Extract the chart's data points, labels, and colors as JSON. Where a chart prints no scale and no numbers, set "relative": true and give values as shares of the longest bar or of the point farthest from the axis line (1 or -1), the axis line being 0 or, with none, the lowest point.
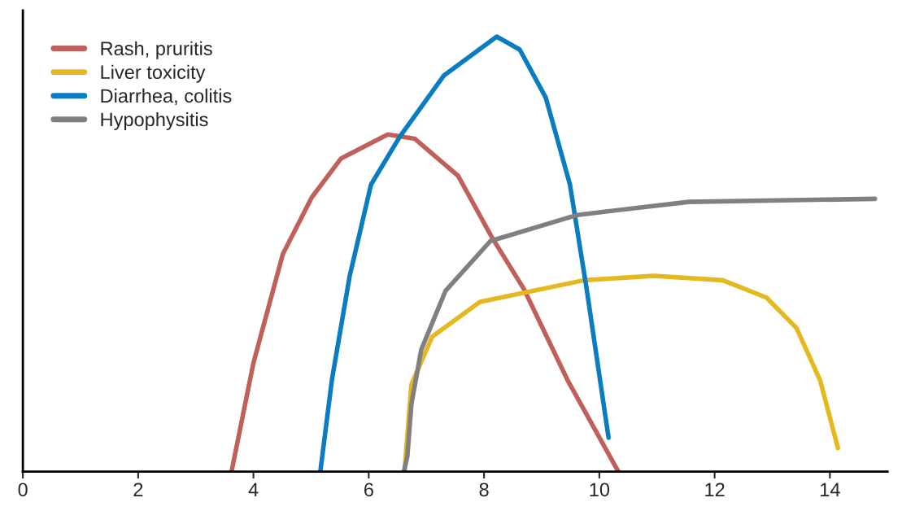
{
  "chart_data": {
    "type": "line",
    "relative": true,
    "xlim": [
      0,
      15
    ],
    "xticks": [
      0,
      2,
      4,
      6,
      8,
      10,
      12,
      14
    ],
    "tick_labels": "x",
    "grid": false,
    "legend": "top left",
    "marker": "none",
    "line_style": "solid",
    "series": [
      {
        "name": "Rash, pruritis",
        "color": "#c0605a",
        "x": [
          3.62,
          4.0,
          4.51,
          5.01,
          5.52,
          6.33,
          6.8,
          7.55,
          8.13,
          8.69,
          9.45,
          10.33
        ],
        "values": [
          0,
          0.25,
          0.5,
          0.63,
          0.72,
          0.775,
          0.765,
          0.68,
          0.54,
          0.42,
          0.21,
          0
        ]
      },
      {
        "name": "Liver toxicity",
        "color": "#e6b820",
        "x": [
          6.62,
          6.74,
          7.1,
          7.93,
          9.74,
          10.94,
          12.14,
          12.9,
          13.42,
          13.83,
          14.14
        ],
        "values": [
          0,
          0.2,
          0.31,
          0.39,
          0.44,
          0.45,
          0.44,
          0.4,
          0.33,
          0.21,
          0.054
        ]
      },
      {
        "name": "Diarrhea, colitis",
        "color": "#0a7cc2",
        "x": [
          5.16,
          5.36,
          5.67,
          6.04,
          6.54,
          7.3,
          8.22,
          8.62,
          9.07,
          9.49,
          9.78,
          10.16
        ],
        "values": [
          0,
          0.21,
          0.45,
          0.66,
          0.77,
          0.91,
          1.0,
          0.97,
          0.86,
          0.66,
          0.42,
          0.078
        ]
      },
      {
        "name": "Hypophysitis",
        "color": "#808080",
        "x": [
          6.61,
          6.67,
          6.74,
          6.91,
          7.33,
          8.11,
          9.62,
          11.55,
          14.78
        ],
        "values": [
          0,
          0.035,
          0.155,
          0.28,
          0.415,
          0.53,
          0.59,
          0.62,
          0.627
        ]
      }
    ]
  }
}
